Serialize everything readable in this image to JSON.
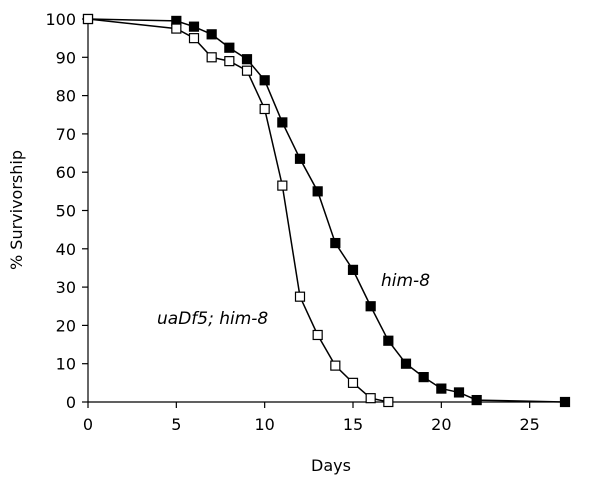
{
  "chart_data": {
    "type": "line",
    "xlabel": "Days",
    "ylabel": "% Survivorship",
    "xlim": [
      0,
      27
    ],
    "ylim": [
      0,
      100
    ],
    "xticks": [
      0,
      5,
      10,
      15,
      20,
      25
    ],
    "yticks": [
      0,
      10,
      20,
      30,
      40,
      50,
      60,
      70,
      80,
      90,
      100
    ],
    "grid": false,
    "series": [
      {
        "name": "him-8",
        "marker": "filled-square",
        "color": "#000000",
        "x": [
          0,
          5,
          6,
          7,
          8,
          9,
          10,
          11,
          12,
          13,
          14,
          15,
          16,
          17,
          18,
          19,
          20,
          21,
          22,
          27
        ],
        "y": [
          100,
          99.5,
          98,
          96,
          92.5,
          89.5,
          84,
          73,
          63.5,
          55,
          41.5,
          34.5,
          25,
          16,
          10,
          6.5,
          3.5,
          2.5,
          0.5,
          0
        ]
      },
      {
        "name": "uaDf5; him-8",
        "marker": "open-square",
        "color": "#000000",
        "x": [
          0,
          5,
          6,
          7,
          8,
          9,
          10,
          11,
          12,
          13,
          14,
          15,
          16,
          17
        ],
        "y": [
          100,
          97.5,
          95,
          90,
          89,
          86.5,
          76.5,
          56.5,
          27.5,
          17.5,
          9.5,
          5,
          1,
          0
        ]
      }
    ]
  }
}
